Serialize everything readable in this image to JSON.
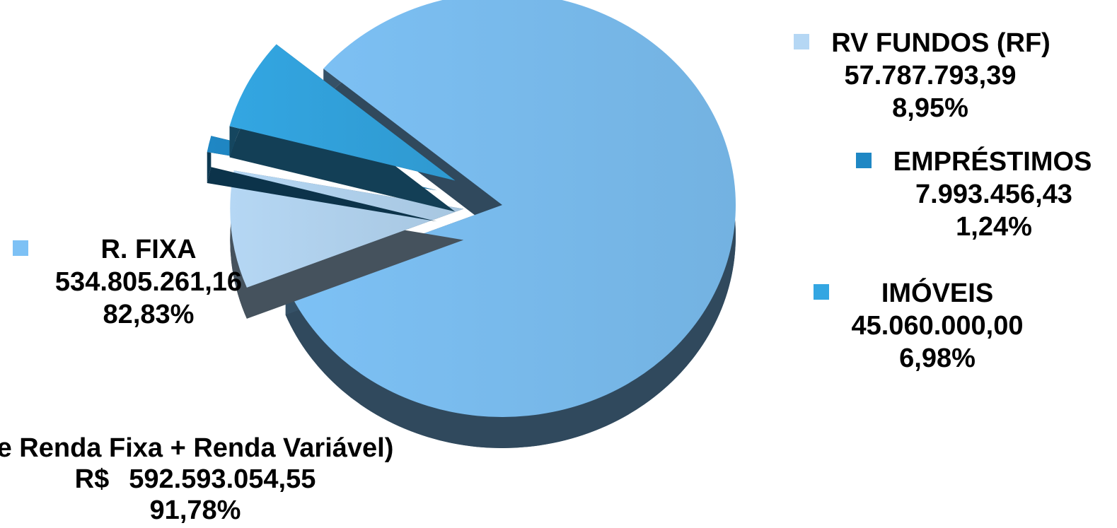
{
  "chart_data": {
    "type": "pie",
    "style": "3d-exploded",
    "slices": [
      {
        "label": "R. FIXA",
        "value": "534.805.261,16",
        "percent": "82,83%",
        "percent_num": 82.83,
        "color": "#7DC1F5"
      },
      {
        "label": "RV FUNDOS (RF)",
        "value": "57.787.793,39",
        "percent": "8,95%",
        "percent_num": 8.95,
        "color": "#B5D7F4"
      },
      {
        "label": "EMPRÉSTIMOS",
        "value": "7.993.456,43",
        "percent": "1,24%",
        "percent_num": 1.24,
        "color": "#1F87C4"
      },
      {
        "label": "IMÓVEIS",
        "value": "45.060.000,00",
        "percent": "6,98%",
        "percent_num": 6.98,
        "color": "#33A6E2"
      }
    ],
    "combined_annotation": {
      "text": "e Renda Fixa + Renda Variável)",
      "currency": "R$",
      "value": "592.593.054,55",
      "percent": "91,78%"
    }
  }
}
